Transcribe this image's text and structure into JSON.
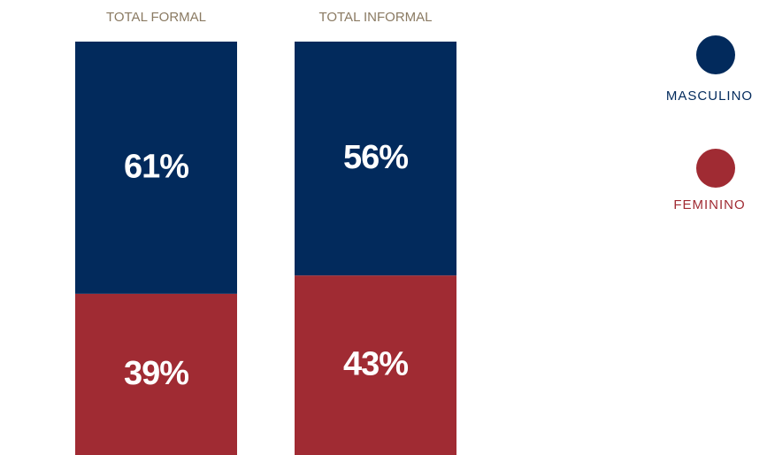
{
  "chart_data": {
    "type": "bar",
    "stacked": true,
    "categories": [
      "TOTAL FORMAL",
      "TOTAL INFORMAL"
    ],
    "series": [
      {
        "name": "MASCULINO",
        "color": "#022a5c",
        "values": [
          61,
          56
        ],
        "labels": [
          "61%",
          "56%"
        ]
      },
      {
        "name": "FEMININO",
        "color": "#a02b33",
        "values": [
          39,
          43
        ],
        "labels": [
          "39%",
          "43%"
        ]
      }
    ],
    "legend_position": "right",
    "grid": false
  }
}
